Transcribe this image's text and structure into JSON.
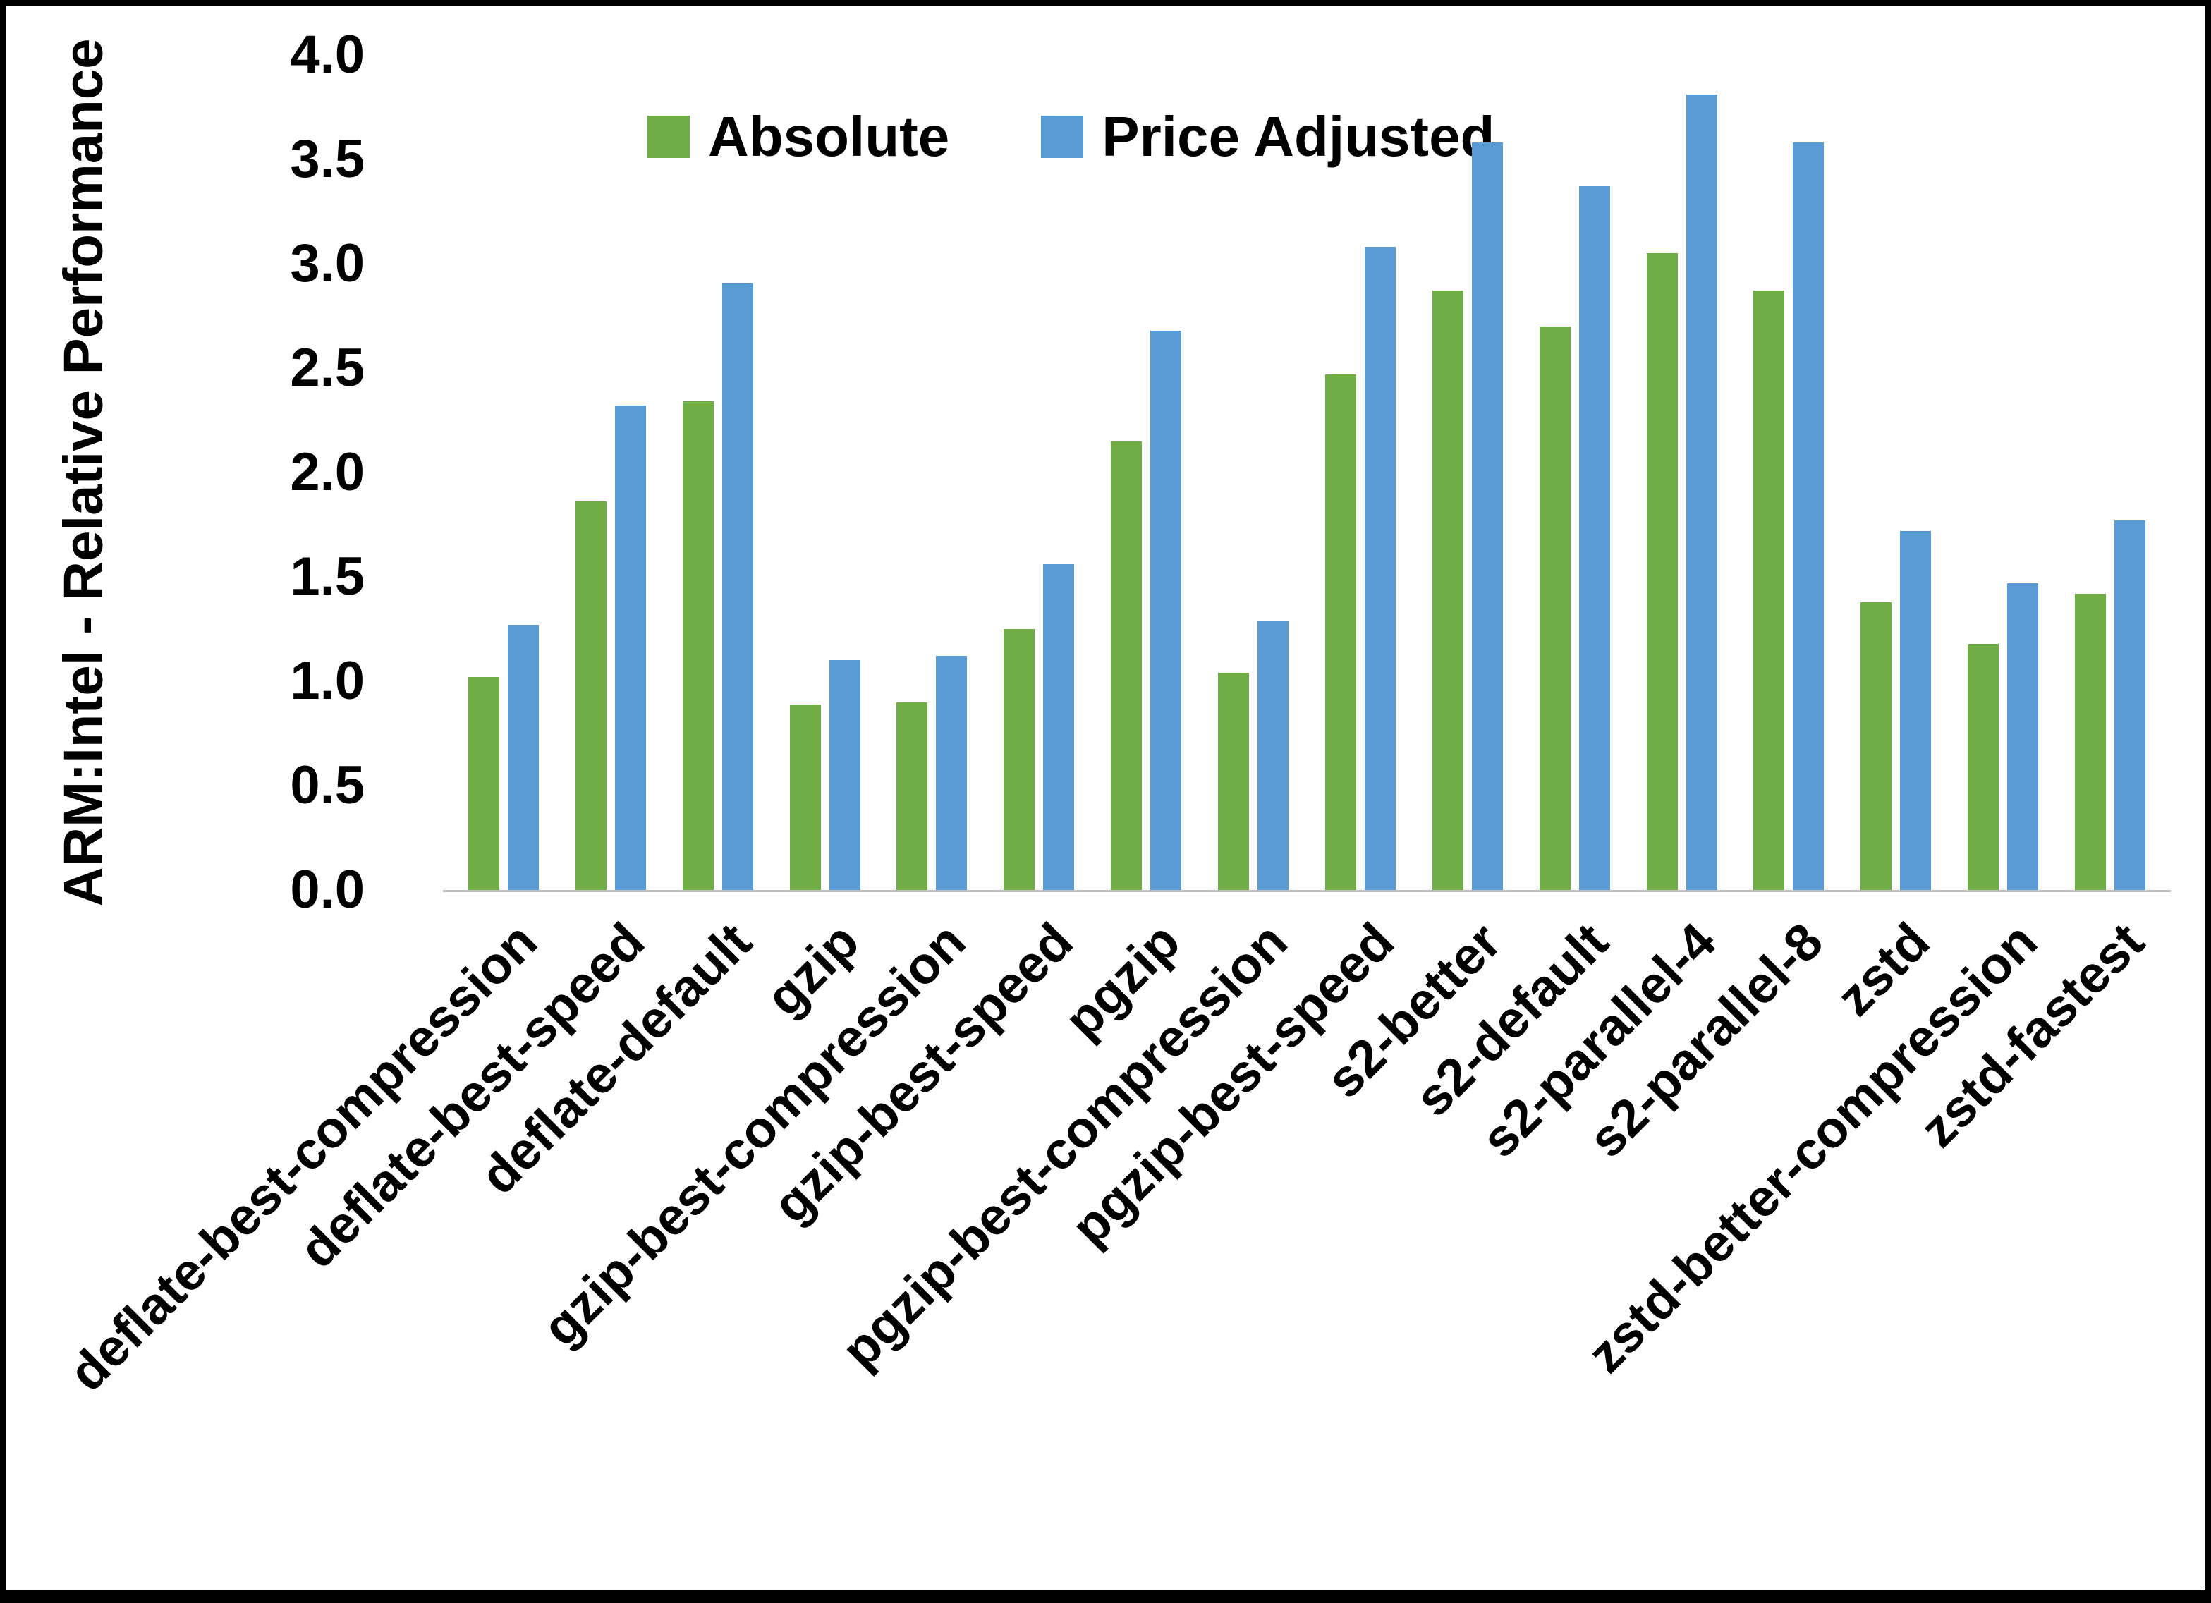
{
  "chart_data": {
    "type": "bar",
    "title": "",
    "xlabel": "",
    "ylabel": "ARM:Intel - Relative Performance",
    "ylim": [
      0,
      4
    ],
    "ytick_step": 0.5,
    "grid": false,
    "legend_position": "top-center",
    "categories": [
      "deflate-best-compression",
      "deflate-best-speed",
      "deflate-default",
      "gzip",
      "gzip-best-compression",
      "gzip-best-speed",
      "pgzip",
      "pgzip-best-compression",
      "pgzip-best-speed",
      "s2-better",
      "s2-default",
      "s2-parallel-4",
      "s2-parallel-8",
      "zstd",
      "zstd-better-compression",
      "zstd-fastest"
    ],
    "series": [
      {
        "name": "Absolute",
        "color": "#70AD47",
        "values": [
          1.02,
          1.86,
          2.34,
          0.89,
          0.9,
          1.25,
          2.15,
          1.04,
          2.47,
          2.87,
          2.7,
          3.05,
          2.87,
          1.38,
          1.18,
          1.42
        ]
      },
      {
        "name": "Price Adjusted",
        "color": "#5B9BD5",
        "values": [
          1.27,
          2.32,
          2.91,
          1.1,
          1.12,
          1.56,
          2.68,
          1.29,
          3.08,
          3.58,
          3.37,
          3.81,
          3.58,
          1.72,
          1.47,
          1.77
        ]
      }
    ],
    "axis_line_color": "#BFBFBF"
  }
}
